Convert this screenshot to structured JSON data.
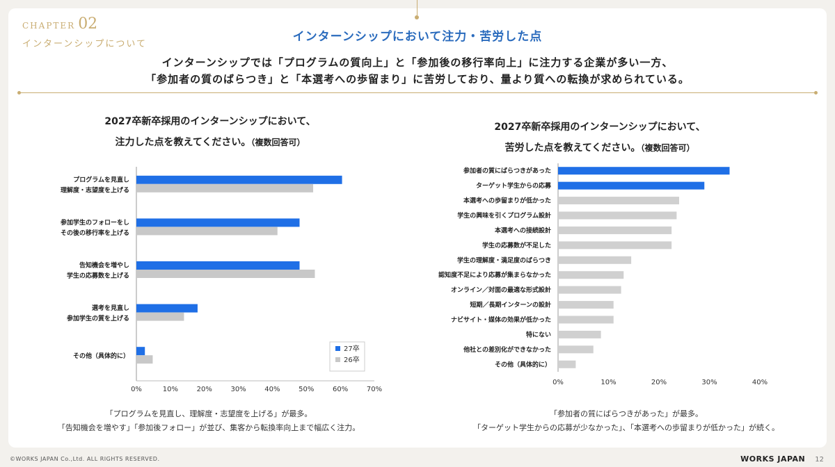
{
  "header": {
    "chapter_label": "CHAPTER",
    "chapter_num": "02",
    "chapter_sub": "インターンシップについて",
    "title": "インターンシップにおいて注力・苦労した点",
    "lead_line1": "インターンシップでは「プログラムの質向上」と「参加後の移行率向上」に注力する企業が多い一方、",
    "lead_line2": "「参加者の質のばらつき」と「本選考への歩留まり」に苦労しており、量より質への転換が求められている。"
  },
  "left_chart": {
    "title_line1": "2027卒新卒採用のインターンシップにおいて、",
    "title_line2": "注力した点を教えてください。",
    "title_note": "（複数回答可）",
    "caption_line1": "「プログラムを見直し、理解度・志望度を上げる」が最多。",
    "caption_line2": "「告知機会を増やす」「参加後フォロー」が並び、集客から転換率向上まで幅広く注力。"
  },
  "right_chart": {
    "title_line1": "2027卒新卒採用のインターンシップにおいて、",
    "title_line2": "苦労した点を教えてください。",
    "title_note": "（複数回答可）",
    "caption_line1": "「参加者の質にばらつきがあった」が最多。",
    "caption_line2": "「ターゲット学生からの応募が少なかった」、「本選考への歩留まりが低かった」が続く。"
  },
  "chart_data": [
    {
      "type": "bar",
      "orientation": "horizontal",
      "categories": [
        [
          "プログラムを見直し",
          "理解度・志望度を上げる"
        ],
        [
          "参加学生のフォローをし",
          "その後の移行率を上げる"
        ],
        [
          "告知機会を増やし",
          "学生の応募数を上げる"
        ],
        [
          "選考を見直し",
          "参加学生の質を上げる"
        ],
        [
          "その他（具体的に）"
        ]
      ],
      "series": [
        {
          "name": "27卒",
          "color": "#1f6fe6",
          "values": [
            60.5,
            48.0,
            48.0,
            18.0,
            2.5
          ]
        },
        {
          "name": "26卒",
          "color": "#c8c8c8",
          "values": [
            52.0,
            41.5,
            52.5,
            14.0,
            4.8
          ]
        }
      ],
      "xlim": [
        0,
        70
      ],
      "xticks": [
        "0%",
        "10%",
        "20%",
        "30%",
        "40%",
        "50%",
        "60%",
        "70%"
      ],
      "legend": "bottom-right"
    },
    {
      "type": "bar",
      "orientation": "horizontal",
      "categories": [
        "参加者の質にばらつきがあった",
        "ターゲット学生からの応募",
        "本選考への歩留まりが低かった",
        "学生の興味を引くプログラム設計",
        "本選考への接続設計",
        "学生の応募数が不足した",
        "学生の理解度・満足度のばらつき",
        "認知度不足により応募が集まらなかった",
        "オンライン／対面の最適な形式設計",
        "短期／長期インターンの設計",
        "ナビサイト・媒体の効果が低かった",
        "特にない",
        "他社との差別化ができなかった",
        "その他（具体的に）"
      ],
      "values": [
        34.0,
        29.0,
        24.0,
        23.5,
        22.5,
        22.5,
        14.5,
        13.0,
        12.5,
        11.0,
        11.0,
        8.5,
        7.0,
        3.5
      ],
      "colors": [
        "#1f6fe6",
        "#1f6fe6",
        "#d0d0d0",
        "#d0d0d0",
        "#d0d0d0",
        "#d0d0d0",
        "#d0d0d0",
        "#d0d0d0",
        "#d0d0d0",
        "#d0d0d0",
        "#d0d0d0",
        "#d0d0d0",
        "#d0d0d0",
        "#d0d0d0"
      ],
      "xlim": [
        0,
        40
      ],
      "xticks": [
        "0%",
        "10%",
        "20%",
        "30%",
        "40%"
      ]
    }
  ],
  "footer": {
    "copyright": "©WORKS JAPAN Co.,Ltd. ALL RIGHTS RESERVED.",
    "logo": "WORKS JAPAN",
    "page": "12"
  }
}
